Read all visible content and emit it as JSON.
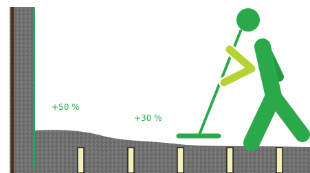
{
  "labels": {
    "left": "+50 %",
    "right": "+30 %"
  }
}
